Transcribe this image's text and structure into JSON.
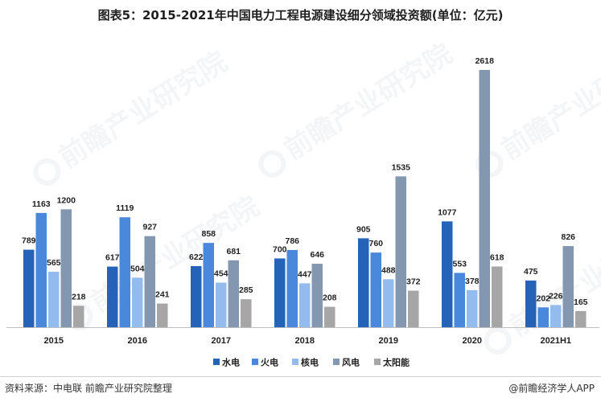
{
  "title": "图表5：2015-2021年中国电力工程电源建设细分领域投资额(单位：亿元)",
  "source": "资料来源：中电联 前瞻产业研究院整理",
  "brand": "@前瞻经济学人APP",
  "watermark_text": "前瞻产业研究院",
  "chart_data": {
    "type": "bar",
    "categories": [
      "2015",
      "2016",
      "2017",
      "2018",
      "2019",
      "2020",
      "2021H1"
    ],
    "series": [
      {
        "name": "水电",
        "color": "#2563b9",
        "values": [
          789,
          617,
          622,
          700,
          905,
          1077,
          475
        ]
      },
      {
        "name": "火电",
        "color": "#4a88dc",
        "values": [
          1163,
          1119,
          858,
          786,
          760,
          553,
          202
        ]
      },
      {
        "name": "核电",
        "color": "#93bbed",
        "values": [
          565,
          504,
          454,
          447,
          488,
          378,
          226
        ]
      },
      {
        "name": "风电",
        "color": "#8497b0",
        "values": [
          1200,
          927,
          681,
          646,
          1535,
          2618,
          826
        ]
      },
      {
        "name": "太阳能",
        "color": "#a6a6a6",
        "values": [
          218,
          241,
          285,
          208,
          372,
          618,
          165
        ]
      }
    ],
    "ylim": [
      0,
      2700
    ],
    "grid": false,
    "legend": "bottom"
  }
}
